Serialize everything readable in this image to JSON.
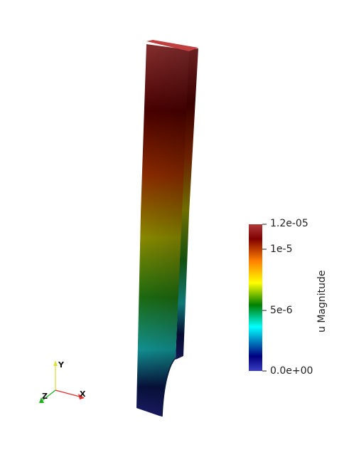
{
  "colorbar": {
    "title": "u Magnitude",
    "labels": [
      "1.2e-05",
      "1e-5",
      "5e-6",
      "0.0e+00"
    ],
    "range": [
      0,
      1.2e-05
    ],
    "colors": [
      "#3b3fc1",
      "#000080",
      "#00ffff",
      "#008000",
      "#ffff00",
      "#ff7f00",
      "#800000",
      "#b03a3a"
    ]
  },
  "axes": {
    "x_label": "X",
    "y_label": "Y",
    "z_label": "Z",
    "x_color": "#e03030",
    "y_color": "#e0e040",
    "z_color": "#20b020"
  },
  "model": {
    "field": "u Magnitude"
  }
}
